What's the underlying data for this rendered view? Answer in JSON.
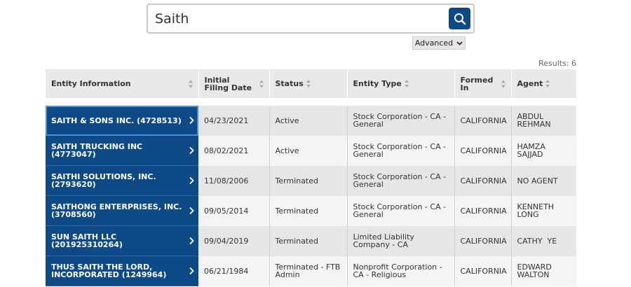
{
  "search": {
    "value": "Saith"
  },
  "advanced_label": "Advanced",
  "results_label": "Results: 6",
  "table": {
    "headers": [
      {
        "label": "Entity Information"
      },
      {
        "label": "Initial Filing Date"
      },
      {
        "label": "Status"
      },
      {
        "label": "Entity Type"
      },
      {
        "label": "Formed In"
      },
      {
        "label": "Agent"
      }
    ],
    "rows": [
      {
        "entity": "SAITH & SONS INC. (4728513)",
        "filing_date": "04/23/2021",
        "status": "Active",
        "entity_type": "Stock Corporation - CA - General",
        "formed_in": "CALIFORNIA",
        "agent": "ABDUL REHMAN"
      },
      {
        "entity": "SAITH TRUCKING INC (4773047)",
        "filing_date": "08/02/2021",
        "status": "Active",
        "entity_type": "Stock Corporation - CA - General",
        "formed_in": "CALIFORNIA",
        "agent": "HAMZA SAJJAD"
      },
      {
        "entity": "SAITHI SOLUTIONS, INC. (2793620)",
        "filing_date": "11/08/2006",
        "status": "Terminated",
        "entity_type": "Stock Corporation - CA - General",
        "formed_in": "CALIFORNIA",
        "agent": "NO AGENT"
      },
      {
        "entity": "SAITHONG ENTERPRISES, INC. (3708560)",
        "filing_date": "09/05/2014",
        "status": "Terminated",
        "entity_type": "Stock Corporation - CA - General",
        "formed_in": "CALIFORNIA",
        "agent": "KENNETH LONG"
      },
      {
        "entity": "SUN SAITH LLC (201925310264)",
        "filing_date": "09/04/2019",
        "status": "Terminated",
        "entity_type": "Limited Liability Company - CA",
        "formed_in": "CALIFORNIA",
        "agent": "CATHY  YE"
      },
      {
        "entity": "THUS SAITH THE LORD, INCORPORATED (1249964)",
        "filing_date": "06/21/1984",
        "status": "Terminated - FTB Admin",
        "entity_type": "Nonprofit Corporation - CA - Religious",
        "formed_in": "CALIFORNIA",
        "agent": "EDWARD WALTON"
      }
    ]
  }
}
